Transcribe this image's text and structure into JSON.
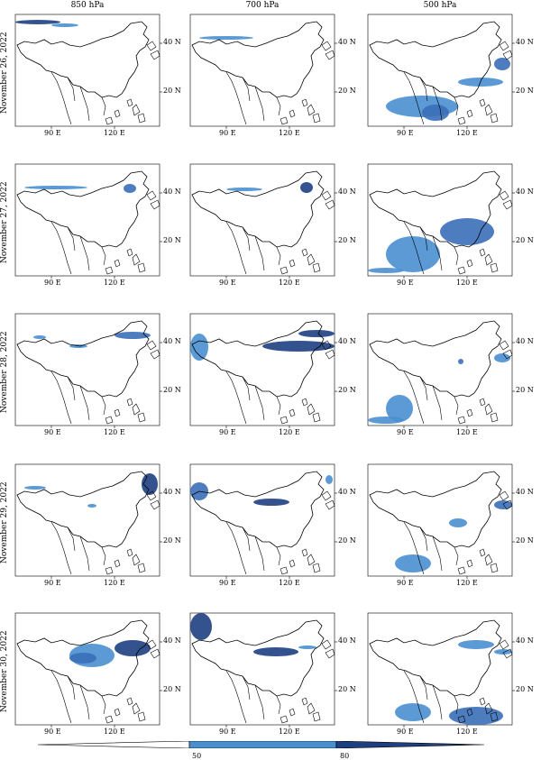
{
  "columns": [
    "850 hPa",
    "700 hPa",
    "500 hPa"
  ],
  "rows": [
    "November 26, 2022",
    "November 27, 2022",
    "November 28, 2022",
    "November 29, 2022",
    "November 30, 2022"
  ],
  "axes": {
    "lon_ticks": [
      "90 E",
      "120 E"
    ],
    "lat_ticks": [
      "40 N",
      "20 N"
    ]
  },
  "colorbar": {
    "tick_labels": [
      "50",
      "80"
    ],
    "colors": {
      "light": "#4a8fd0",
      "mid": "#3a6fb8",
      "dark": "#1e3f82"
    }
  },
  "map_features": [
    "coastline",
    "national-borders",
    "shaded-regions"
  ]
}
